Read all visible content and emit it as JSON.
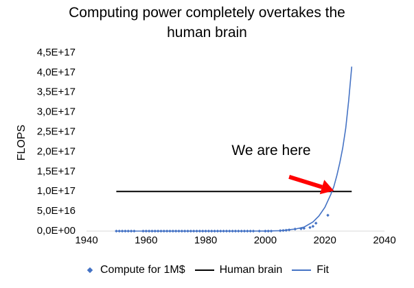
{
  "chart_data": {
    "type": "scatter",
    "title_lines": [
      "Computing power completely overtakes the",
      "human brain"
    ],
    "ylabel": "FLOPS",
    "xlabel": "",
    "xlim": [
      1940,
      2040
    ],
    "ylim": [
      0,
      4.5e+17
    ],
    "x_ticks": [
      1940,
      1960,
      1980,
      2000,
      2020,
      2040
    ],
    "x_tick_labels": [
      "1940",
      "1960",
      "1980",
      "2000",
      "2020",
      "2040"
    ],
    "y_ticks": [
      0,
      5e+16,
      1e+17,
      1.5e+17,
      2e+17,
      2.5e+17,
      3e+17,
      3.5e+17,
      4e+17,
      4.5e+17
    ],
    "y_tick_labels": [
      "0,0E+00",
      "5,0E+16",
      "1,0E+17",
      "1,5E+17",
      "2,0E+17",
      "2,5E+17",
      "3,0E+17",
      "3,5E+17",
      "4,0E+17",
      "4,5E+17"
    ],
    "grid": false,
    "legend_position": "bottom",
    "series": [
      {
        "name": "Compute for 1M$",
        "kind": "scatter",
        "color": "#4472c4",
        "x": [
          1950,
          1951,
          1952,
          1953,
          1954,
          1955,
          1956,
          1959,
          1960,
          1961,
          1962,
          1963,
          1964,
          1965,
          1966,
          1967,
          1968,
          1969,
          1970,
          1971,
          1972,
          1973,
          1974,
          1975,
          1976,
          1977,
          1978,
          1979,
          1980,
          1981,
          1982,
          1983,
          1984,
          1985,
          1986,
          1987,
          1988,
          1989,
          1990,
          1991,
          1992,
          1993,
          1994,
          1995,
          1996,
          1998,
          2000,
          2001,
          2002,
          2005,
          2006,
          2007,
          2008,
          2010,
          2012,
          2013,
          2015,
          2016,
          2017,
          2021
        ],
        "y": [
          0,
          0,
          0,
          0,
          0,
          0,
          0,
          0,
          0,
          0,
          0,
          0,
          0,
          0,
          0,
          0,
          0,
          0,
          0,
          0,
          0,
          0,
          0,
          0,
          0,
          0,
          0,
          0,
          0,
          0,
          0,
          0,
          0,
          0,
          0,
          0,
          0,
          0,
          0,
          0,
          0,
          0,
          0,
          0,
          0,
          0,
          0,
          0,
          0,
          1000000000000000.0,
          1500000000000000.0,
          2000000000000000.0,
          3000000000000000.0,
          5000000000000000.0,
          6000000000000000.0,
          7000000000000000.0,
          9000000000000000.0,
          1.2e+16,
          2e+16,
          4e+16
        ]
      },
      {
        "name": "Human brain",
        "kind": "line",
        "color": "#000000",
        "x": [
          1950,
          2029
        ],
        "y": [
          1e+17,
          1e+17
        ]
      },
      {
        "name": "Fit",
        "kind": "line",
        "color": "#4472c4",
        "x": [
          1950,
          1960,
          1970,
          1980,
          1990,
          2000,
          2005,
          2010,
          2013,
          2016,
          2018,
          2020,
          2022,
          2023,
          2024,
          2025,
          2026,
          2027,
          2028,
          2029
        ],
        "y": [
          0,
          0,
          0,
          0,
          0,
          200000000000000.0,
          1000000000000000.0,
          5000000000000000.0,
          1e+16,
          2.3e+16,
          3.8e+16,
          6e+16,
          9.3e+16,
          1.12e+17,
          1.4e+17,
          1.72e+17,
          2.1e+17,
          2.6e+17,
          3.3e+17,
          4.15e+17
        ]
      }
    ],
    "annotations": [
      {
        "text": "We are here",
        "arrow_from": [
          2008,
          1.37e+17
        ],
        "arrow_to": [
          2023,
          1.02e+17
        ],
        "arrow_color": "#ff0000"
      }
    ]
  }
}
